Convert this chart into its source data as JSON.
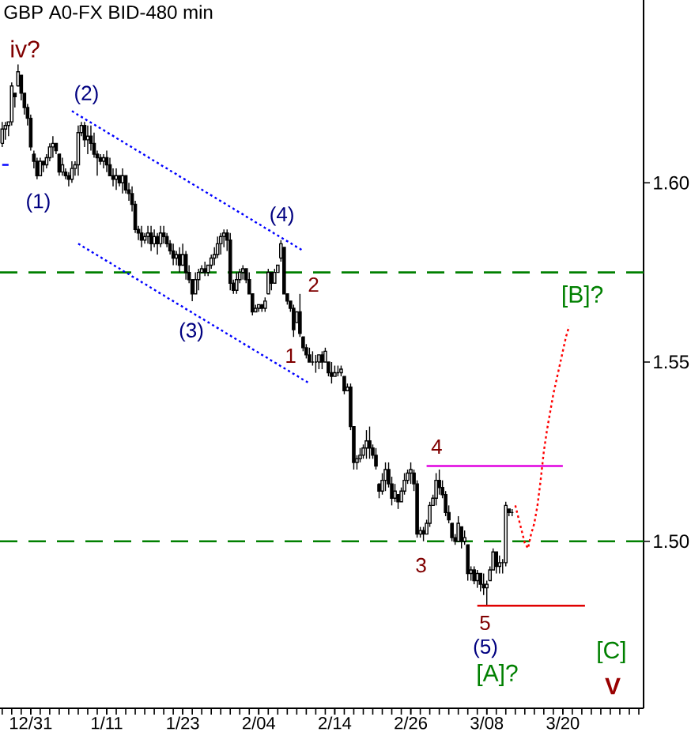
{
  "chart_data": {
    "type": "candlestick",
    "title": "GBP A0-FX BID-480 min",
    "color": "#000000",
    "categories": [
      null,
      null,
      null,
      null,
      null,
      null,
      null,
      null,
      null,
      "12/31",
      null,
      null,
      null,
      null,
      null,
      null,
      null,
      null,
      null,
      null,
      null,
      null,
      null,
      null,
      null,
      null,
      null,
      null,
      null,
      null,
      null,
      null,
      null,
      "1/11",
      null,
      null,
      null,
      null,
      null,
      null,
      null,
      null,
      null,
      null,
      null,
      null,
      null,
      null,
      null,
      null,
      null,
      null,
      null,
      null,
      null,
      null,
      null,
      "1/23",
      null,
      null,
      null,
      null,
      null,
      null,
      null,
      null,
      null,
      null,
      null,
      null,
      null,
      null,
      null,
      null,
      null,
      null,
      null,
      null,
      null,
      null,
      null,
      "2/04",
      null,
      null,
      null,
      null,
      null,
      null,
      null,
      null,
      null,
      null,
      null,
      null,
      null,
      null,
      null,
      null,
      null,
      null,
      null,
      null,
      null,
      null,
      null,
      "2/14",
      null,
      null,
      null,
      null,
      null,
      null,
      null,
      null,
      null,
      null,
      null,
      null,
      null,
      null,
      null,
      null,
      null,
      null,
      null,
      null,
      null,
      null,
      null,
      "2/26",
      null,
      null,
      null,
      null,
      null,
      null,
      null,
      null,
      null,
      null,
      null,
      null,
      null,
      null,
      null,
      null,
      null,
      null,
      null,
      null,
      null,
      null,
      null,
      "3/08",
      null,
      null,
      null,
      null,
      null,
      null,
      null,
      null,
      null,
      null,
      null,
      null,
      null,
      null,
      null,
      null,
      null,
      null,
      null,
      null,
      null,
      null,
      null,
      "3/20",
      null,
      null,
      null,
      null,
      null,
      null,
      null,
      null,
      null,
      null,
      null,
      null,
      null,
      null,
      null,
      null,
      null,
      null,
      null,
      null,
      null,
      null,
      null,
      null,
      null
    ],
    "ohlc": [
      [
        1.611,
        1.617,
        1.61,
        1.615
      ],
      [
        1.615,
        1.617,
        1.612,
        1.616
      ],
      [
        1.616,
        1.617,
        1.613,
        1.617
      ],
      [
        1.617,
        1.628,
        1.616,
        1.627
      ],
      [
        1.625,
        1.625,
        1.621,
        1.624
      ],
      [
        1.627,
        1.633,
        1.627,
        1.631
      ],
      [
        1.63,
        1.63,
        1.623,
        1.625
      ],
      [
        1.625,
        1.625,
        1.619,
        1.621
      ],
      [
        1.621,
        1.622,
        1.616,
        1.618
      ],
      [
        1.618,
        1.619,
        1.609,
        1.61
      ],
      [
        1.608,
        1.609,
        1.604,
        1.606
      ],
      [
        1.606,
        1.607,
        1.601,
        1.602
      ],
      [
        1.602,
        1.607,
        1.602,
        1.606
      ],
      [
        1.606,
        1.606,
        1.603,
        1.605
      ],
      [
        1.605,
        1.608,
        1.604,
        1.607
      ],
      [
        1.607,
        1.611,
        1.606,
        1.61
      ],
      [
        1.61,
        1.613,
        1.607,
        1.611
      ],
      [
        1.611,
        1.611,
        1.608,
        1.609
      ],
      [
        1.608,
        1.608,
        1.602,
        1.603
      ],
      [
        1.603,
        1.607,
        1.602,
        1.605
      ],
      [
        1.603,
        1.604,
        1.601,
        1.602
      ],
      [
        1.602,
        1.603,
        1.599,
        1.601
      ],
      [
        1.601,
        1.606,
        1.6,
        1.604
      ],
      [
        1.604,
        1.606,
        1.602,
        1.605
      ],
      [
        1.605,
        1.616,
        1.602,
        1.614
      ],
      [
        1.614,
        1.617,
        1.613,
        1.616
      ],
      [
        1.616,
        1.617,
        1.61,
        1.612
      ],
      [
        1.612,
        1.616,
        1.608,
        1.613
      ],
      [
        1.613,
        1.616,
        1.609,
        1.611
      ],
      [
        1.611,
        1.614,
        1.607,
        1.608
      ],
      [
        1.608,
        1.609,
        1.602,
        1.607
      ],
      [
        1.607,
        1.608,
        1.605,
        1.606
      ],
      [
        1.606,
        1.608,
        1.604,
        1.607
      ],
      [
        1.607,
        1.609,
        1.603,
        1.605
      ],
      [
        1.605,
        1.607,
        1.602,
        1.602
      ],
      [
        1.602,
        1.604,
        1.599,
        1.601
      ],
      [
        1.601,
        1.604,
        1.598,
        1.602
      ],
      [
        1.602,
        1.602,
        1.599,
        1.6
      ],
      [
        1.6,
        1.604,
        1.597,
        1.602
      ],
      [
        1.602,
        1.602,
        1.597,
        1.598
      ],
      [
        1.598,
        1.6,
        1.595,
        1.597
      ],
      [
        1.597,
        1.599,
        1.592,
        1.594
      ],
      [
        1.594,
        1.595,
        1.586,
        1.587
      ],
      [
        1.587,
        1.588,
        1.584,
        1.586
      ],
      [
        1.586,
        1.588,
        1.582,
        1.584
      ],
      [
        1.584,
        1.586,
        1.583,
        1.585
      ],
      [
        1.585,
        1.588,
        1.583,
        1.586
      ],
      [
        1.586,
        1.588,
        1.581,
        1.583
      ],
      [
        1.583,
        1.587,
        1.582,
        1.585
      ],
      [
        1.585,
        1.586,
        1.58,
        1.583
      ],
      [
        1.583,
        1.588,
        1.582,
        1.586
      ],
      [
        1.586,
        1.588,
        1.583,
        1.585
      ],
      [
        1.585,
        1.586,
        1.582,
        1.583
      ],
      [
        1.583,
        1.584,
        1.58,
        1.581
      ],
      [
        1.581,
        1.583,
        1.577,
        1.579
      ],
      [
        1.579,
        1.581,
        1.577,
        1.58
      ],
      [
        1.58,
        1.582,
        1.575,
        1.577
      ],
      [
        1.577,
        1.583,
        1.577,
        1.58
      ],
      [
        1.58,
        1.581,
        1.573,
        1.575
      ],
      [
        1.575,
        1.577,
        1.572,
        1.573
      ],
      [
        1.573,
        1.573,
        1.567,
        1.569
      ],
      [
        1.569,
        1.575,
        1.569,
        1.573
      ],
      [
        1.573,
        1.576,
        1.57,
        1.575
      ],
      [
        1.575,
        1.577,
        1.575,
        1.576
      ],
      [
        1.576,
        1.578,
        1.574,
        1.575
      ],
      [
        1.575,
        1.577,
        1.574,
        1.577
      ],
      [
        1.577,
        1.58,
        1.576,
        1.579
      ],
      [
        1.579,
        1.582,
        1.577,
        1.58
      ],
      [
        1.58,
        1.585,
        1.579,
        1.583
      ],
      [
        1.583,
        1.586,
        1.58,
        1.585
      ],
      [
        1.585,
        1.587,
        1.582,
        1.586
      ],
      [
        1.586,
        1.587,
        1.581,
        1.584
      ],
      [
        1.584,
        1.586,
        1.57,
        1.572
      ],
      [
        1.572,
        1.573,
        1.569,
        1.57
      ],
      [
        1.57,
        1.575,
        1.569,
        1.573
      ],
      [
        1.573,
        1.576,
        1.572,
        1.575
      ],
      [
        1.575,
        1.577,
        1.573,
        1.576
      ],
      [
        1.576,
        1.576,
        1.572,
        1.573
      ],
      [
        1.573,
        1.575,
        1.569,
        1.569
      ],
      [
        1.569,
        1.569,
        1.563,
        1.564
      ],
      [
        1.564,
        1.566,
        1.564,
        1.565
      ],
      [
        1.565,
        1.566,
        1.564,
        1.566
      ],
      [
        1.566,
        1.566,
        1.564,
        1.565
      ],
      [
        1.565,
        1.568,
        1.564,
        1.567
      ],
      [
        1.569,
        1.576,
        1.569,
        1.575
      ],
      [
        1.575,
        1.575,
        1.57,
        1.572
      ],
      [
        1.572,
        1.576,
        1.572,
        1.575
      ],
      [
        1.575,
        1.577,
        1.575,
        1.577
      ],
      [
        1.579,
        1.584,
        1.578,
        1.583
      ],
      [
        1.582,
        1.582,
        1.569,
        1.569
      ],
      [
        1.569,
        1.569,
        1.566,
        1.567
      ],
      [
        1.567,
        1.567,
        1.564,
        1.565
      ],
      [
        1.565,
        1.566,
        1.557,
        1.559
      ],
      [
        1.561,
        1.564,
        1.561,
        1.564
      ],
      [
        1.564,
        1.569,
        1.557,
        1.558
      ],
      [
        1.557,
        1.557,
        1.553,
        1.554
      ],
      [
        1.554,
        1.555,
        1.551,
        1.552
      ],
      [
        1.552,
        1.554,
        1.55,
        1.55
      ],
      [
        1.55,
        1.553,
        1.549,
        1.55
      ],
      [
        1.55,
        1.552,
        1.547,
        1.55
      ],
      [
        1.55,
        1.552,
        1.548,
        1.552
      ],
      [
        1.552,
        1.553,
        1.548,
        1.55
      ],
      [
        1.55,
        1.554,
        1.55,
        1.553
      ],
      [
        1.55,
        1.55,
        1.546,
        1.547
      ],
      [
        1.547,
        1.55,
        1.544,
        1.546
      ],
      [
        1.546,
        1.549,
        1.546,
        1.547
      ],
      [
        1.547,
        1.549,
        1.546,
        1.547
      ],
      [
        1.547,
        1.549,
        1.546,
        1.548
      ],
      [
        1.546,
        1.546,
        1.541,
        1.542
      ],
      [
        1.542,
        1.544,
        1.542,
        1.543
      ],
      [
        1.543,
        1.544,
        1.531,
        1.532
      ],
      [
        1.532,
        1.532,
        1.52,
        1.522
      ],
      [
        1.522,
        1.524,
        1.52,
        1.523
      ],
      [
        1.523,
        1.526,
        1.522,
        1.524
      ],
      [
        1.524,
        1.527,
        1.523,
        1.526
      ],
      [
        1.526,
        1.531,
        1.523,
        1.528
      ],
      [
        1.528,
        1.532,
        1.523,
        1.526
      ],
      [
        1.526,
        1.527,
        1.523,
        1.524
      ],
      [
        1.524,
        1.526,
        1.52,
        1.521
      ],
      [
        1.516,
        1.516,
        1.512,
        1.514
      ],
      [
        1.514,
        1.519,
        1.513,
        1.517
      ],
      [
        1.517,
        1.522,
        1.514,
        1.52
      ],
      [
        1.52,
        1.522,
        1.515,
        1.516
      ],
      [
        1.516,
        1.518,
        1.51,
        1.512
      ],
      [
        1.512,
        1.516,
        1.511,
        1.514
      ],
      [
        1.513,
        1.513,
        1.509,
        1.511
      ],
      [
        1.511,
        1.515,
        1.511,
        1.514
      ],
      [
        1.514,
        1.519,
        1.513,
        1.517
      ],
      [
        1.517,
        1.52,
        1.516,
        1.519
      ],
      [
        1.519,
        1.522,
        1.516,
        1.52
      ],
      [
        1.519,
        1.52,
        1.514,
        1.516
      ],
      [
        1.516,
        1.517,
        1.501,
        1.502
      ],
      [
        1.502,
        1.504,
        1.501,
        1.503
      ],
      [
        1.503,
        1.504,
        1.5,
        1.502
      ],
      [
        1.502,
        1.506,
        1.502,
        1.505
      ],
      [
        1.505,
        1.511,
        1.504,
        1.51
      ],
      [
        1.51,
        1.513,
        1.51,
        1.512
      ],
      [
        1.512,
        1.519,
        1.51,
        1.517
      ],
      [
        1.517,
        1.52,
        1.513,
        1.515
      ],
      [
        1.515,
        1.517,
        1.512,
        1.513
      ],
      [
        1.513,
        1.514,
        1.507,
        1.508
      ],
      [
        1.508,
        1.51,
        1.505,
        1.506
      ],
      [
        1.505,
        1.505,
        1.5,
        1.501
      ],
      [
        1.501,
        1.502,
        1.499,
        1.5
      ],
      [
        1.5,
        1.507,
        1.5,
        1.505
      ],
      [
        1.504,
        1.504,
        1.498,
        1.5
      ],
      [
        1.5,
        1.503,
        1.499,
        1.501
      ],
      [
        1.499,
        1.499,
        1.489,
        1.491
      ],
      [
        1.491,
        1.493,
        1.489,
        1.492
      ],
      [
        1.492,
        1.493,
        1.488,
        1.489
      ],
      [
        1.489,
        1.492,
        1.487,
        1.491
      ],
      [
        1.491,
        1.491,
        1.486,
        1.488
      ],
      [
        1.488,
        1.491,
        1.485,
        1.487
      ],
      [
        1.487,
        1.489,
        1.482,
        1.488
      ],
      [
        1.489,
        1.493,
        1.489,
        1.492
      ],
      [
        1.492,
        1.498,
        1.492,
        1.497
      ],
      [
        1.497,
        1.497,
        1.491,
        1.493
      ],
      [
        1.493,
        1.496,
        1.491,
        1.494
      ],
      [
        1.494,
        1.495,
        1.491,
        1.494
      ],
      [
        1.494,
        1.511,
        1.493,
        1.51
      ],
      [
        1.509,
        1.509,
        1.507,
        1.508
      ],
      [
        1.508,
        1.509,
        1.507,
        1.508
      ],
      null,
      null,
      null,
      null,
      null,
      null,
      null,
      null,
      null,
      null,
      null,
      null,
      null,
      null,
      null,
      null,
      null,
      null,
      null,
      null,
      null,
      null,
      null,
      null,
      null,
      null,
      null,
      null,
      null,
      null,
      null,
      null,
      null,
      null,
      null,
      null,
      null,
      null,
      null,
      null,
      null
    ],
    "series": [
      {
        "type": "line",
        "color": "#0000ff",
        "line_style": "dotted",
        "values": [
          null,
          null,
          null,
          null,
          null,
          null,
          null,
          null,
          null,
          null,
          null,
          null,
          null,
          null,
          null,
          null,
          null,
          null,
          null,
          null,
          null,
          null,
          1.62,
          1.6195,
          1.6189,
          1.6184,
          1.6179,
          1.6173,
          1.6168,
          1.6163,
          1.6157,
          1.6152,
          1.6147,
          1.6141,
          1.6136,
          1.6131,
          1.6125,
          1.612,
          1.6115,
          1.6109,
          1.6104,
          1.6099,
          1.6093,
          1.6088,
          1.6083,
          1.6077,
          1.6072,
          1.6066,
          1.6061,
          1.6056,
          1.605,
          1.6045,
          1.604,
          1.6034,
          1.6029,
          1.6024,
          1.6018,
          1.6013,
          1.6008,
          1.6002,
          1.5997,
          1.5992,
          1.5986,
          1.5981,
          1.5976,
          1.597,
          1.5965,
          1.596,
          1.5954,
          1.5949,
          1.5944,
          1.5938,
          1.5933,
          1.5928,
          1.5922,
          1.5917,
          1.5912,
          1.5906,
          1.5901,
          1.5896,
          1.589,
          1.5885,
          1.588,
          1.5874,
          1.5869,
          1.5864,
          1.5858,
          1.5853,
          1.5848,
          1.5842,
          1.5837,
          1.5832,
          1.5826,
          1.5821,
          1.5816,
          1.581,
          null,
          null,
          null,
          null,
          null,
          null,
          null,
          null,
          null,
          null,
          null,
          null,
          null,
          null,
          null,
          null,
          null,
          null,
          null,
          null,
          null,
          null,
          null,
          null,
          null,
          null,
          null,
          null,
          null,
          null,
          null,
          null,
          null,
          null,
          null,
          null,
          null,
          null,
          null,
          null,
          null,
          null,
          null,
          null,
          null,
          null,
          null,
          null,
          null,
          null,
          null,
          null,
          null,
          null,
          null,
          null,
          null,
          null,
          null,
          null,
          null,
          null,
          null,
          null,
          null,
          null,
          null,
          null,
          null,
          null,
          null,
          null,
          null,
          null,
          null,
          null,
          null,
          null,
          null,
          null,
          null,
          null,
          null,
          null,
          null,
          null,
          null,
          null,
          null,
          null,
          null,
          null,
          null,
          null,
          null,
          null,
          null,
          null,
          null,
          null,
          null,
          null,
          null,
          null,
          null,
          null,
          null
        ]
      },
      {
        "type": "line",
        "color": "#0000ff",
        "line_style": "dotted",
        "values": [
          null,
          null,
          null,
          null,
          null,
          null,
          null,
          null,
          null,
          null,
          null,
          null,
          null,
          null,
          null,
          null,
          null,
          null,
          null,
          null,
          null,
          null,
          null,
          null,
          1.583,
          1.5825,
          1.5819,
          1.5814,
          1.5809,
          1.5803,
          1.5798,
          1.5793,
          1.5787,
          1.5782,
          1.5777,
          1.5771,
          1.5766,
          1.5761,
          1.5755,
          1.575,
          1.5745,
          1.5739,
          1.5734,
          1.5729,
          1.5723,
          1.5718,
          1.5713,
          1.5707,
          1.5702,
          1.5696,
          1.5691,
          1.5686,
          1.568,
          1.5675,
          1.567,
          1.5664,
          1.5659,
          1.5654,
          1.5648,
          1.5643,
          1.5638,
          1.5632,
          1.5627,
          1.5622,
          1.5616,
          1.5611,
          1.5606,
          1.56,
          1.5595,
          1.559,
          1.5584,
          1.5579,
          1.5574,
          1.5568,
          1.5563,
          1.5558,
          1.5552,
          1.5547,
          1.5542,
          1.5536,
          1.5531,
          1.5526,
          1.552,
          1.5515,
          1.551,
          1.5504,
          1.5499,
          1.5494,
          1.5488,
          1.5483,
          1.5478,
          1.5472,
          1.5467,
          1.5462,
          1.5456,
          1.5451,
          1.5446,
          1.544,
          null,
          null,
          null,
          null,
          null,
          null,
          null,
          null,
          null,
          null,
          null,
          null,
          null,
          null,
          null,
          null,
          null,
          null,
          null,
          null,
          null,
          null,
          null,
          null,
          null,
          null,
          null,
          null,
          null,
          null,
          null,
          null,
          null,
          null,
          null,
          null,
          null,
          null,
          null,
          null,
          null,
          null,
          null,
          null,
          null,
          null,
          null,
          null,
          null,
          null,
          null,
          null,
          null,
          null,
          null,
          null,
          null,
          null,
          null,
          null,
          null,
          null,
          null,
          null,
          null,
          null,
          null,
          null,
          null,
          null,
          null,
          null,
          null,
          null,
          null,
          null,
          null,
          null,
          null,
          null,
          null,
          null,
          null,
          null,
          null,
          null,
          null,
          null,
          null,
          null,
          null,
          null,
          null,
          null,
          null,
          null,
          null,
          null,
          null,
          null,
          null,
          null,
          null,
          null,
          null
        ]
      },
      {
        "type": "line",
        "color": "#0000ff",
        "line_style": "solid",
        "values": [
          1.605,
          1.605,
          1.605,
          null,
          null,
          null,
          null,
          null,
          null,
          null,
          null,
          null,
          null,
          null,
          null,
          null,
          null,
          null,
          null,
          null,
          null,
          null,
          null,
          null,
          null,
          null,
          null,
          null,
          null,
          null,
          null,
          null,
          null,
          null,
          null,
          null,
          null,
          null,
          null,
          null,
          null,
          null,
          null,
          null,
          null,
          null,
          null,
          null,
          null,
          null,
          null,
          null,
          null,
          null,
          null,
          null,
          null,
          null,
          null,
          null,
          null,
          null,
          null,
          null,
          null,
          null,
          null,
          null,
          null,
          null,
          null,
          null,
          null,
          null,
          null,
          null,
          null,
          null,
          null,
          null,
          null,
          null,
          null,
          null,
          null,
          null,
          null,
          null,
          null,
          null,
          null,
          null,
          null,
          null,
          null,
          null,
          null,
          null,
          null,
          null,
          null,
          null,
          null,
          null,
          null,
          null,
          null,
          null,
          null,
          null,
          null,
          null,
          null,
          null,
          null,
          null,
          null,
          null,
          null,
          null,
          null,
          null,
          null,
          null,
          null,
          null,
          null,
          null,
          null,
          null,
          null,
          null,
          null,
          null,
          null,
          null,
          null,
          null,
          null,
          null,
          null,
          null,
          null,
          null,
          null,
          null,
          null,
          null,
          null,
          null,
          null,
          null,
          null,
          null,
          null,
          null,
          null,
          null,
          null,
          null,
          null,
          null,
          null,
          null,
          null,
          null,
          null,
          null,
          null,
          null,
          null,
          null,
          null,
          null,
          null,
          null,
          null,
          null,
          null,
          null,
          null,
          null,
          null,
          null,
          null,
          null,
          null,
          null,
          null,
          null,
          null,
          null,
          null,
          null,
          null,
          null,
          null,
          null,
          null,
          null,
          null,
          null,
          null
        ]
      },
      {
        "type": "line",
        "color": "#e000e0",
        "line_style": "solid",
        "values": [
          null,
          null,
          null,
          null,
          null,
          null,
          null,
          null,
          null,
          null,
          null,
          null,
          null,
          null,
          null,
          null,
          null,
          null,
          null,
          null,
          null,
          null,
          null,
          null,
          null,
          null,
          null,
          null,
          null,
          null,
          null,
          null,
          null,
          null,
          null,
          null,
          null,
          null,
          null,
          null,
          null,
          null,
          null,
          null,
          null,
          null,
          null,
          null,
          null,
          null,
          null,
          null,
          null,
          null,
          null,
          null,
          null,
          null,
          null,
          null,
          null,
          null,
          null,
          null,
          null,
          null,
          null,
          null,
          null,
          null,
          null,
          null,
          null,
          null,
          null,
          null,
          null,
          null,
          null,
          null,
          null,
          null,
          null,
          null,
          null,
          null,
          null,
          null,
          null,
          null,
          null,
          null,
          null,
          null,
          null,
          null,
          null,
          null,
          null,
          null,
          null,
          null,
          null,
          null,
          null,
          null,
          null,
          null,
          null,
          null,
          null,
          null,
          null,
          null,
          null,
          null,
          null,
          null,
          null,
          null,
          null,
          null,
          null,
          null,
          null,
          null,
          null,
          null,
          null,
          null,
          null,
          null,
          null,
          null,
          1.521,
          1.521,
          1.521,
          1.521,
          1.521,
          1.521,
          1.521,
          1.521,
          1.521,
          1.521,
          1.521,
          1.521,
          1.521,
          1.521,
          1.521,
          1.521,
          1.521,
          1.521,
          1.521,
          1.521,
          1.521,
          1.521,
          1.521,
          1.521,
          1.521,
          1.521,
          1.521,
          1.521,
          1.521,
          1.521,
          1.521,
          1.521,
          1.521,
          1.521,
          1.521,
          1.521,
          1.521,
          1.521,
          1.521,
          1.521,
          1.521,
          1.521,
          1.521,
          1.521,
          null,
          null,
          null,
          null,
          null,
          null,
          null,
          null,
          null,
          null,
          null,
          null,
          null,
          null,
          null,
          null,
          null,
          null,
          null,
          null,
          null,
          null,
          null,
          null,
          null
        ]
      },
      {
        "type": "line",
        "color": "#e00000",
        "line_style": "solid",
        "values": [
          null,
          null,
          null,
          null,
          null,
          null,
          null,
          null,
          null,
          null,
          null,
          null,
          null,
          null,
          null,
          null,
          null,
          null,
          null,
          null,
          null,
          null,
          null,
          null,
          null,
          null,
          null,
          null,
          null,
          null,
          null,
          null,
          null,
          null,
          null,
          null,
          null,
          null,
          null,
          null,
          null,
          null,
          null,
          null,
          null,
          null,
          null,
          null,
          null,
          null,
          null,
          null,
          null,
          null,
          null,
          null,
          null,
          null,
          null,
          null,
          null,
          null,
          null,
          null,
          null,
          null,
          null,
          null,
          null,
          null,
          null,
          null,
          null,
          null,
          null,
          null,
          null,
          null,
          null,
          null,
          null,
          null,
          null,
          null,
          null,
          null,
          null,
          null,
          null,
          null,
          null,
          null,
          null,
          null,
          null,
          null,
          null,
          null,
          null,
          null,
          null,
          null,
          null,
          null,
          null,
          null,
          null,
          null,
          null,
          null,
          null,
          null,
          null,
          null,
          null,
          null,
          null,
          null,
          null,
          null,
          null,
          null,
          null,
          null,
          null,
          null,
          null,
          null,
          null,
          null,
          null,
          null,
          null,
          null,
          null,
          null,
          null,
          null,
          null,
          null,
          null,
          null,
          null,
          null,
          null,
          null,
          null,
          null,
          null,
          null,
          1.482,
          1.482,
          1.482,
          1.482,
          1.482,
          1.482,
          1.482,
          1.482,
          1.482,
          1.482,
          1.482,
          1.482,
          1.482,
          1.482,
          1.482,
          1.482,
          1.482,
          1.482,
          1.482,
          1.482,
          1.482,
          1.482,
          1.482,
          1.482,
          1.482,
          1.482,
          1.482,
          1.482,
          1.482,
          1.482,
          1.482,
          1.482,
          1.482,
          1.482,
          1.482,
          null,
          null,
          null,
          null,
          null,
          null,
          null,
          null,
          null,
          null,
          null,
          null,
          null,
          null,
          null,
          null,
          null,
          null
        ]
      },
      {
        "type": "line",
        "color": "#ff0000",
        "line_style": "dotted",
        "values": [
          null,
          null,
          null,
          null,
          null,
          null,
          null,
          null,
          null,
          null,
          null,
          null,
          null,
          null,
          null,
          null,
          null,
          null,
          null,
          null,
          null,
          null,
          null,
          null,
          null,
          null,
          null,
          null,
          null,
          null,
          null,
          null,
          null,
          null,
          null,
          null,
          null,
          null,
          null,
          null,
          null,
          null,
          null,
          null,
          null,
          null,
          null,
          null,
          null,
          null,
          null,
          null,
          null,
          null,
          null,
          null,
          null,
          null,
          null,
          null,
          null,
          null,
          null,
          null,
          null,
          null,
          null,
          null,
          null,
          null,
          null,
          null,
          null,
          null,
          null,
          null,
          null,
          null,
          null,
          null,
          null,
          null,
          null,
          null,
          null,
          null,
          null,
          null,
          null,
          null,
          null,
          null,
          null,
          null,
          null,
          null,
          null,
          null,
          null,
          null,
          null,
          null,
          null,
          null,
          null,
          null,
          null,
          null,
          null,
          null,
          null,
          null,
          null,
          null,
          null,
          null,
          null,
          null,
          null,
          null,
          null,
          null,
          null,
          null,
          null,
          null,
          null,
          null,
          null,
          null,
          null,
          null,
          null,
          null,
          null,
          null,
          null,
          null,
          null,
          null,
          null,
          null,
          null,
          null,
          null,
          null,
          null,
          null,
          null,
          null,
          null,
          null,
          null,
          null,
          null,
          null,
          null,
          null,
          null,
          null,
          null,
          null,
          1.51,
          1.5065,
          1.503,
          1.4995,
          1.498,
          1.502,
          1.505,
          1.51,
          1.517,
          1.525,
          1.531,
          1.536,
          1.541,
          1.545,
          1.549,
          1.553,
          1.557,
          1.56,
          null,
          null,
          null,
          null,
          null,
          null,
          null,
          null,
          null,
          null,
          null,
          null,
          null,
          null,
          null,
          null,
          null,
          null,
          null,
          null,
          null,
          null,
          null
        ]
      }
    ],
    "ref_lines": [
      {
        "axis": "y",
        "value": 1.575,
        "color": "#008000",
        "line_style": "dashed"
      },
      {
        "axis": "y",
        "value": 1.5,
        "color": "#008000",
        "line_style": "dashed"
      }
    ],
    "annotations": [
      "iv?",
      "(1)",
      "(2)",
      "(3)",
      "(4)",
      "1",
      "2",
      "3",
      "4",
      "5",
      "(5)",
      "[A]?",
      "[B]?",
      "[C]",
      "V"
    ],
    "ylim": [
      1.4534,
      1.651
    ],
    "yticks": [
      {
        "value": 1.5,
        "label": "1.50"
      },
      1.55,
      {
        "value": 1.6,
        "label": "1.60"
      }
    ]
  }
}
